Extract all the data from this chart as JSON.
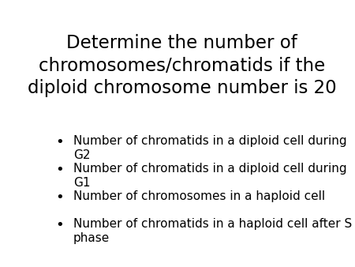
{
  "title": "Determine the number of\nchromosomes/chromatids if the\ndiploid chromosome number is 20",
  "bullet_points": [
    "Number of chromatids in a diploid cell during\nG2",
    "Number of chromatids in a diploid cell during\nG1",
    "Number of chromosomes in a haploid cell",
    "Number of chromatids in a haploid cell after S\nphase"
  ],
  "background_color": "#ffffff",
  "text_color": "#000000",
  "title_fontsize": 16.5,
  "bullet_fontsize": 11.0,
  "bullet_symbol": "•"
}
